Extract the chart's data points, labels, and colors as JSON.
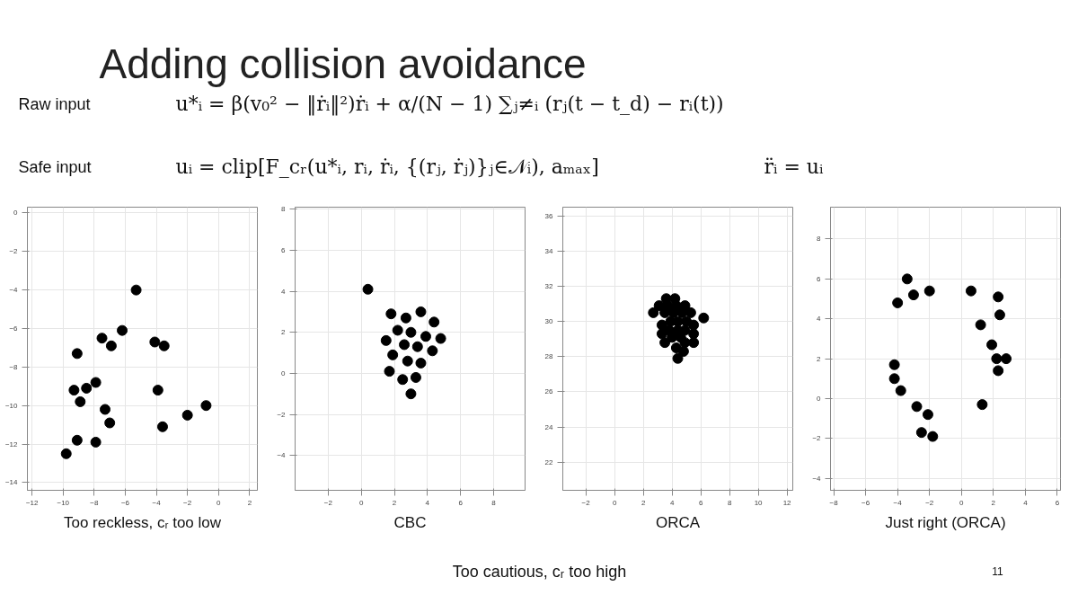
{
  "chart_data": [
    {
      "type": "other",
      "title": "Adding collision avoidance",
      "annotations": [
        "Raw input",
        "u*ᵢ = β(v₀² − ‖ṙᵢ‖²)ṙᵢ + α/(N − 1) ∑ⱼ≠ᵢ (rⱼ(t − t_d) − rᵢ(t))",
        "Safe input",
        "uᵢ = clip[F_cᵣ(u*ᵢ, rᵢ, ṙᵢ, {(rⱼ, ṙⱼ)}ⱼ∈𝒩ᵢ), aₘₐₓ]",
        "r̈ᵢ = uᵢ"
      ]
    },
    {
      "type": "scatter",
      "annotations": [
        "Too reckless, cᵣ too low"
      ],
      "color": "#000000",
      "marker": "circle",
      "grid": true,
      "xlim": [
        -12.3,
        2.5
      ],
      "ylim": [
        -14.4,
        0.3
      ],
      "xticks": [
        -12,
        -10,
        -8,
        -6,
        -4,
        -2,
        0,
        2
      ],
      "yticks": [
        -14,
        -12,
        -10,
        -8,
        -6,
        -4,
        -2,
        0
      ],
      "x": [
        -5.3,
        -6.2,
        -7.5,
        -6.9,
        -4.1,
        -3.5,
        -9.1,
        -7.9,
        -8.5,
        -9.3,
        -8.9,
        -3.9,
        -7.3,
        -7.0,
        -0.8,
        -2.0,
        -3.6,
        -9.1,
        -7.9,
        -9.8
      ],
      "values": [
        -4.0,
        -6.1,
        -6.5,
        -6.9,
        -6.7,
        -6.9,
        -7.3,
        -8.8,
        -9.1,
        -9.2,
        -9.8,
        -9.2,
        -10.2,
        -10.9,
        -10.0,
        -10.5,
        -11.1,
        -11.8,
        -11.9,
        -12.5
      ]
    },
    {
      "type": "scatter",
      "annotations": [
        "CBC"
      ],
      "color": "#000000",
      "marker": "circle",
      "grid": true,
      "xlim": [
        -4.0,
        9.9
      ],
      "ylim": [
        -5.7,
        8.1
      ],
      "xticks": [
        -2,
        0,
        2,
        4,
        6,
        8
      ],
      "yticks": [
        -4,
        -2,
        0,
        2,
        4,
        6,
        8
      ],
      "x": [
        0.4,
        1.8,
        2.7,
        3.6,
        4.4,
        2.2,
        3.0,
        3.9,
        4.8,
        1.5,
        2.6,
        3.4,
        4.3,
        1.9,
        2.8,
        3.6,
        1.7,
        2.5,
        3.3,
        3.0
      ],
      "values": [
        4.1,
        2.9,
        2.7,
        3.0,
        2.5,
        2.1,
        2.0,
        1.8,
        1.7,
        1.6,
        1.4,
        1.3,
        1.1,
        0.9,
        0.6,
        0.5,
        0.1,
        -0.3,
        -0.2,
        -1.0
      ]
    },
    {
      "type": "scatter",
      "annotations": [
        "ORCA"
      ],
      "color": "#000000",
      "marker": "circle",
      "grid": true,
      "xlim": [
        -3.6,
        12.4
      ],
      "ylim": [
        20.4,
        36.5
      ],
      "xticks": [
        -2,
        0,
        2,
        4,
        6,
        8,
        10,
        12
      ],
      "yticks": [
        22,
        24,
        26,
        28,
        30,
        32,
        34,
        36
      ],
      "x": [
        3.6,
        4.2,
        3.1,
        3.7,
        4.3,
        4.9,
        2.7,
        3.5,
        4.1,
        4.7,
        5.3,
        6.2,
        3.9,
        4.4,
        5.0,
        3.3,
        5.5,
        3.8,
        4.4,
        4.9,
        3.3,
        5.5,
        4.0,
        4.6,
        3.5,
        4.9,
        5.5,
        4.3,
        4.8,
        4.4
      ],
      "values": [
        31.3,
        31.3,
        30.9,
        30.9,
        30.9,
        30.9,
        30.5,
        30.5,
        30.5,
        30.5,
        30.5,
        30.2,
        30.0,
        30.0,
        30.0,
        29.8,
        29.8,
        29.5,
        29.5,
        29.5,
        29.3,
        29.3,
        29.1,
        29.1,
        28.8,
        28.8,
        28.8,
        28.5,
        28.3,
        27.9
      ]
    },
    {
      "type": "scatter",
      "annotations": [
        "Just right (ORCA)"
      ],
      "color": "#000000",
      "marker": "circle",
      "grid": true,
      "xlim": [
        -8.2,
        6.2
      ],
      "ylim": [
        -4.6,
        9.6
      ],
      "xticks": [
        -8,
        -6,
        -4,
        -2,
        0,
        2,
        4,
        6
      ],
      "yticks": [
        -4,
        -2,
        0,
        2,
        4,
        6,
        8
      ],
      "x": [
        -3.4,
        -3.0,
        -2.0,
        -4.0,
        0.6,
        2.3,
        2.4,
        1.2,
        1.9,
        2.2,
        2.8,
        2.3,
        -4.2,
        -4.2,
        -3.8,
        1.3,
        -2.8,
        -2.1,
        -2.5,
        -1.8
      ],
      "values": [
        6.0,
        5.2,
        5.4,
        4.8,
        5.4,
        5.1,
        4.2,
        3.7,
        2.7,
        2.0,
        2.0,
        1.4,
        1.7,
        1.0,
        0.4,
        -0.3,
        -0.4,
        -0.8,
        -1.7,
        -1.9
      ]
    },
    {
      "type": "other",
      "annotations": [
        "Too cautious, cᵣ too high",
        "11"
      ]
    }
  ]
}
